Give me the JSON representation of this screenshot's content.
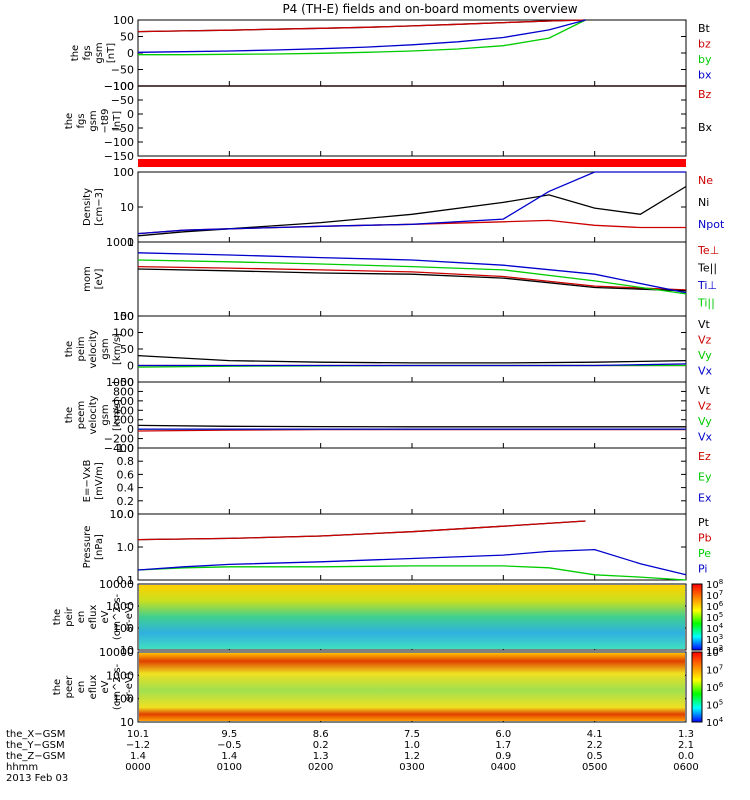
{
  "title": "P4 (TH-E) fields and on-board moments overview",
  "date_label": "2013 Feb 03",
  "colors": {
    "black": "#000000",
    "red": "#cc0000",
    "green": "#00cc00",
    "blue": "#0000cc",
    "bar": "#ff0000"
  },
  "chart_data": [
    {
      "type": "line",
      "id": "fgs",
      "ylabel_lines": [
        "the",
        "fgs",
        "gsm",
        "[nT]"
      ],
      "ylim": [
        -100,
        100
      ],
      "ticks": [
        "100",
        "50",
        "0",
        "−50",
        "−100"
      ],
      "series": [
        {
          "name": "Bt",
          "color": "#000000",
          "x": [
            0.0,
            0.5,
            1.0,
            1.5,
            2.0,
            2.5,
            3.0,
            3.5,
            4.0,
            4.5,
            4.9
          ],
          "values": [
            65,
            67,
            69,
            72,
            75,
            78,
            82,
            87,
            92,
            97,
            100
          ]
        },
        {
          "name": "bz",
          "color": "#cc0000",
          "x": [
            0.0,
            0.5,
            1.0,
            1.5,
            2.0,
            2.5,
            3.0,
            3.5,
            4.0,
            4.5,
            4.9
          ],
          "values": [
            65,
            67,
            69,
            72,
            75,
            78,
            82,
            87,
            92,
            97,
            100
          ]
        },
        {
          "name": "by",
          "color": "#00cc00",
          "x": [
            0.0,
            0.5,
            1.0,
            1.5,
            2.0,
            2.5,
            3.0,
            3.5,
            4.0,
            4.5,
            4.9
          ],
          "values": [
            -5,
            -5,
            -4,
            -3,
            -1,
            2,
            6,
            12,
            22,
            45,
            100
          ]
        },
        {
          "name": "bx",
          "color": "#0000cc",
          "x": [
            0.0,
            0.5,
            1.0,
            1.5,
            2.0,
            2.5,
            3.0,
            3.5,
            4.0,
            4.5,
            4.9
          ],
          "values": [
            2,
            4,
            6,
            9,
            13,
            18,
            25,
            34,
            47,
            70,
            100
          ]
        }
      ]
    },
    {
      "type": "line",
      "id": "fgs_dip",
      "ylabel_lines": [
        "the",
        "fgs",
        "gsm",
        "−t89",
        "[nT]"
      ],
      "ylim": [
        -175,
        -100
      ],
      "ticks": [
        "−100",
        "−50",
        "0",
        "−50",
        "−100",
        "−150"
      ],
      "series": [
        {
          "name": "Bz",
          "color": "#cc0000",
          "x": [
            0,
            1,
            2,
            3,
            4,
            5,
            6
          ],
          "values": [
            0,
            0,
            0,
            0,
            0,
            2,
            10
          ]
        },
        {
          "name": "Bx",
          "color": "#000000",
          "x": [
            0,
            1,
            2,
            3,
            4,
            5,
            6
          ],
          "values": [
            0,
            0,
            0,
            0,
            0,
            -5,
            -25
          ]
        }
      ]
    },
    {
      "type": "line",
      "id": "density",
      "ylabel_lines": [
        "Density",
        "[cm−3]"
      ],
      "ylim": [
        0.3,
        100
      ],
      "scale": "log",
      "ticks": [
        "100",
        "10",
        "1"
      ],
      "series": [
        {
          "name": "Ne",
          "color": "#cc0000",
          "x": [
            0,
            0.5,
            1,
            2,
            3,
            4,
            4.5,
            5,
            5.5,
            6
          ],
          "values": [
            0.6,
            0.8,
            0.9,
            1.1,
            1.3,
            1.6,
            1.8,
            1.2,
            1.0,
            1.0
          ]
        },
        {
          "name": "Ni",
          "color": "#000000",
          "x": [
            0,
            0.5,
            1,
            2,
            3,
            4,
            4.5,
            5,
            5.5,
            6
          ],
          "values": [
            0.5,
            0.7,
            0.9,
            1.5,
            3.0,
            8,
            15,
            5,
            3,
            30
          ]
        },
        {
          "name": "Npot",
          "color": "#0000cc",
          "x": [
            0,
            0.5,
            1,
            2,
            3,
            4,
            4.5,
            5,
            5.5,
            6
          ],
          "values": [
            0.6,
            0.8,
            0.9,
            1.1,
            1.3,
            2,
            20,
            100,
            100,
            100
          ]
        }
      ]
    },
    {
      "type": "line",
      "id": "temp",
      "ylabel_lines": [
        "mom",
        "[eV]"
      ],
      "ylim": [
        20,
        6000
      ],
      "scale": "log",
      "ticks": [
        "1000",
        "100"
      ],
      "series": [
        {
          "name": "Te⊥",
          "color": "#cc0000",
          "x": [
            0,
            1,
            2,
            3,
            4,
            5,
            6
          ],
          "values": [
            900,
            800,
            700,
            600,
            420,
            200,
            150
          ]
        },
        {
          "name": "Te||",
          "color": "#000000",
          "x": [
            0,
            1,
            2,
            3,
            4,
            5,
            6
          ],
          "values": [
            750,
            650,
            550,
            500,
            370,
            180,
            140
          ]
        },
        {
          "name": "Ti⊥",
          "color": "#0000cc",
          "x": [
            0,
            1,
            2,
            3,
            4,
            5,
            6
          ],
          "values": [
            2600,
            2200,
            1800,
            1500,
            1000,
            500,
            120
          ]
        },
        {
          "name": "Ti||",
          "color": "#00cc00",
          "x": [
            0,
            1,
            2,
            3,
            4,
            5,
            6
          ],
          "values": [
            1500,
            1300,
            1100,
            900,
            700,
            300,
            110
          ]
        }
      ]
    },
    {
      "type": "line",
      "id": "peim",
      "ylabel_lines": [
        "the",
        "peim",
        "velocity",
        "gsm",
        "[km/s]"
      ],
      "ylim": [
        -50,
        150
      ],
      "ticks": [
        "150",
        "100",
        "50",
        "0",
        "−50"
      ],
      "series": [
        {
          "name": "Vt",
          "color": "#000000",
          "x": [
            0,
            1,
            2,
            3,
            4,
            5,
            6
          ],
          "values": [
            30,
            15,
            10,
            8,
            8,
            10,
            15
          ]
        },
        {
          "name": "Vz",
          "color": "#cc0000",
          "x": [
            0,
            1,
            2,
            3,
            4,
            5,
            6
          ],
          "values": [
            0,
            0,
            0,
            0,
            0,
            0,
            0
          ]
        },
        {
          "name": "Vy",
          "color": "#00cc00",
          "x": [
            0,
            1,
            2,
            3,
            4,
            5,
            6
          ],
          "values": [
            -5,
            -2,
            -1,
            0,
            0,
            0,
            0
          ]
        },
        {
          "name": "Vx",
          "color": "#0000cc",
          "x": [
            0,
            1,
            2,
            3,
            4,
            5,
            6
          ],
          "values": [
            0,
            0,
            0,
            0,
            0,
            0,
            5
          ]
        }
      ]
    },
    {
      "type": "line",
      "id": "peem",
      "ylabel_lines": [
        "the",
        "peem",
        "velocity",
        "gsm",
        "[km/s]"
      ],
      "ylim": [
        -400,
        1000
      ],
      "ticks": [
        "1000",
        "800",
        "600",
        "400",
        "200",
        "0",
        "−200",
        "−400"
      ],
      "series": [
        {
          "name": "Vt",
          "color": "#000000",
          "x": [
            0,
            1,
            2,
            3,
            4,
            5,
            6
          ],
          "values": [
            80,
            60,
            55,
            50,
            50,
            50,
            50
          ]
        },
        {
          "name": "Vz",
          "color": "#cc0000",
          "x": [
            0,
            1,
            2,
            3,
            4,
            5,
            6
          ],
          "values": [
            -40,
            -20,
            -10,
            -10,
            -10,
            -10,
            -10
          ]
        },
        {
          "name": "Vy",
          "color": "#00cc00",
          "x": [
            0,
            1,
            2,
            3,
            4,
            5,
            6
          ],
          "values": [
            0,
            0,
            0,
            0,
            0,
            0,
            0
          ]
        },
        {
          "name": "Vx",
          "color": "#0000cc",
          "x": [
            0,
            1,
            2,
            3,
            4,
            5,
            6
          ],
          "values": [
            0,
            0,
            0,
            0,
            0,
            0,
            0
          ]
        }
      ]
    },
    {
      "type": "line",
      "id": "efield",
      "ylabel_lines": [
        "E=−VxB",
        "[mV/m]"
      ],
      "ylim": [
        0,
        1
      ],
      "ticks": [
        "1.0",
        "0.8",
        "0.6",
        "0.4",
        "0.2",
        "0.0"
      ],
      "series": [
        {
          "name": "Ez",
          "color": "#cc0000",
          "x": [],
          "values": []
        },
        {
          "name": "Ey",
          "color": "#00cc00",
          "x": [],
          "values": []
        },
        {
          "name": "Ex",
          "color": "#0000cc",
          "x": [],
          "values": []
        }
      ]
    },
    {
      "type": "line",
      "id": "pressure",
      "ylabel_lines": [
        "Pressure",
        "[nPa]"
      ],
      "ylim": [
        0.03,
        20
      ],
      "scale": "log",
      "ticks": [
        "10.0",
        "1.0",
        "0.1"
      ],
      "series": [
        {
          "name": "Pt",
          "color": "#000000",
          "x": [
            0,
            1,
            2,
            3,
            4,
            4.9
          ],
          "values": [
            1.6,
            1.8,
            2.3,
            3.5,
            6,
            10
          ]
        },
        {
          "name": "Pb",
          "color": "#cc0000",
          "x": [
            0,
            1,
            2,
            3,
            4,
            4.9
          ],
          "values": [
            1.6,
            1.8,
            2.3,
            3.5,
            6,
            10
          ]
        },
        {
          "name": "Pe",
          "color": "#00cc00",
          "x": [
            0,
            0.5,
            1,
            2,
            3,
            4,
            4.5,
            5,
            5.5,
            6
          ],
          "values": [
            0.08,
            0.1,
            0.11,
            0.11,
            0.12,
            0.12,
            0.1,
            0.05,
            0.04,
            0.03
          ]
        },
        {
          "name": "Pi",
          "color": "#0000cc",
          "x": [
            0,
            0.5,
            1,
            2,
            3,
            4,
            4.5,
            5,
            5.5,
            6
          ],
          "values": [
            0.08,
            0.11,
            0.14,
            0.18,
            0.25,
            0.35,
            0.5,
            0.6,
            0.15,
            0.05
          ]
        }
      ]
    },
    {
      "type": "heatmap",
      "id": "peir",
      "ylabel_lines": [
        "the",
        "peir",
        "en",
        "eflux",
        "eV",
        "(cm^2-s-",
        "sr-eV)"
      ],
      "ticks": [
        "10000",
        "1000",
        "100",
        "10"
      ],
      "colorbar_ticks": [
        "10^8",
        "10^7",
        "10^6",
        "10^5",
        "10^4",
        "10^3",
        "10^2"
      ]
    },
    {
      "type": "heatmap",
      "id": "peer",
      "ylabel_lines": [
        "the",
        "peer",
        "en",
        "eflux",
        "eV",
        "(cm^2-s-",
        "sr-eV)"
      ],
      "ticks": [
        "10000",
        "1000",
        "100",
        "10"
      ],
      "colorbar_ticks": [
        "10^8",
        "10^7",
        "10^6",
        "10^5",
        "10^4"
      ]
    }
  ],
  "xaxis": {
    "labels": [
      {
        "name": "the_X−GSM",
        "values": [
          "10.1",
          "9.5",
          "8.6",
          "7.5",
          "6.0",
          "4.1",
          "1.3"
        ]
      },
      {
        "name": "the_Y−GSM",
        "values": [
          "−1.2",
          "−0.5",
          "0.2",
          "1.0",
          "1.7",
          "2.2",
          "2.1"
        ]
      },
      {
        "name": "the_Z−GSM",
        "values": [
          "1.4",
          "1.4",
          "1.3",
          "1.2",
          "0.9",
          "0.5",
          "0.0"
        ]
      },
      {
        "name": "hhmm",
        "values": [
          "0000",
          "0100",
          "0200",
          "0300",
          "0400",
          "0500",
          "0600"
        ]
      }
    ],
    "range": [
      0,
      6
    ]
  }
}
